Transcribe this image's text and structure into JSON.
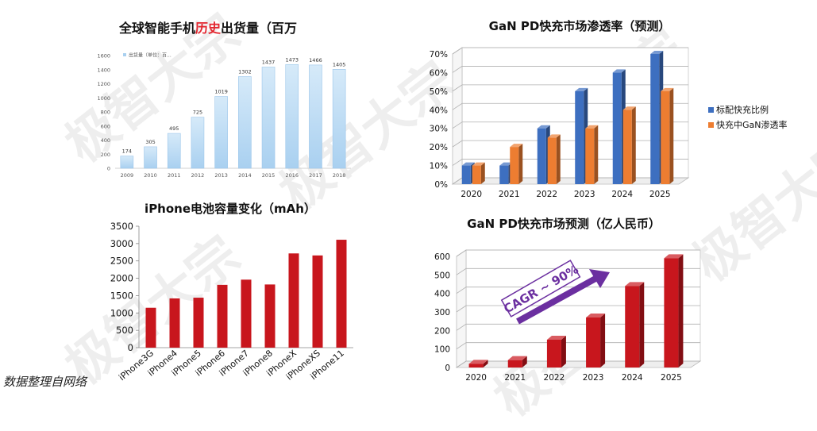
{
  "watermark": "极智大宗",
  "source_note": "数据整理自网络",
  "colors": {
    "shipment_bar_top": "#d6eaf9",
    "shipment_bar_bottom": "#a9d0f0",
    "blue": "#3d6fc0",
    "orange": "#ed7d31",
    "red": "#c8161d",
    "purple": "#6b2fa0"
  },
  "chart_data": [
    {
      "id": "shipments",
      "type": "bar",
      "title_pre": "全球智能手机",
      "title_hl": "历史",
      "title_post": "出货量（百万",
      "legend": "出货量（单位：百...",
      "categories": [
        "2009",
        "2010",
        "2011",
        "2012",
        "2013",
        "2014",
        "2015",
        "2016",
        "2017",
        "2018"
      ],
      "series": [
        {
          "name": "出货量（单位：百...",
          "values": [
            174,
            305,
            495,
            725,
            1019,
            1302,
            1437,
            1473,
            1466,
            1405
          ]
        }
      ],
      "yticks": [
        "0",
        "200",
        "400",
        "600",
        "800",
        "1000",
        "1200",
        "1400",
        "1600"
      ],
      "ylim": [
        0,
        1600
      ],
      "legend_position": "top-left",
      "grid": false
    },
    {
      "id": "penetration",
      "type": "bar",
      "title": "GaN PD快充市场渗透率（预测）",
      "categories": [
        "2020",
        "2021",
        "2022",
        "2023",
        "2024",
        "2025"
      ],
      "series": [
        {
          "name": "标配快充比例",
          "values": [
            0.1,
            0.1,
            0.3,
            0.5,
            0.6,
            0.7
          ]
        },
        {
          "name": "快充中GaN渗透率",
          "values": [
            0.1,
            0.2,
            0.25,
            0.3,
            0.4,
            0.5
          ]
        }
      ],
      "yticks": [
        "0%",
        "10%",
        "20%",
        "30%",
        "40%",
        "50%",
        "60%",
        "70%"
      ],
      "ylim": [
        0,
        0.7
      ],
      "legend_position": "right",
      "grid": true
    },
    {
      "id": "battery",
      "type": "bar",
      "title": "iPhone电池容量变化（mAh）",
      "categories": [
        "iPhone3G",
        "iPhone4",
        "iPhone5",
        "iPhone6",
        "iPhone7",
        "iPhone8",
        "iPhoneX",
        "iPhoneXS",
        "iPhone11"
      ],
      "values": [
        1150,
        1420,
        1440,
        1810,
        1960,
        1821,
        2716,
        2658,
        3110
      ],
      "yticks": [
        "0",
        "500",
        "1000",
        "1500",
        "2000",
        "2500",
        "3000",
        "3500"
      ],
      "ylim": [
        0,
        3500
      ],
      "grid": false
    },
    {
      "id": "market",
      "type": "bar",
      "title": "GaN PD快充市场预测（亿人民币）",
      "categories": [
        "2020",
        "2021",
        "2022",
        "2023",
        "2024",
        "2025"
      ],
      "values": [
        20,
        40,
        150,
        270,
        440,
        590
      ],
      "yticks": [
        "0",
        "100",
        "200",
        "300",
        "400",
        "500",
        "600"
      ],
      "ylim": [
        0,
        600
      ],
      "annotation": "CAGR ~ 90%",
      "grid": true
    }
  ]
}
